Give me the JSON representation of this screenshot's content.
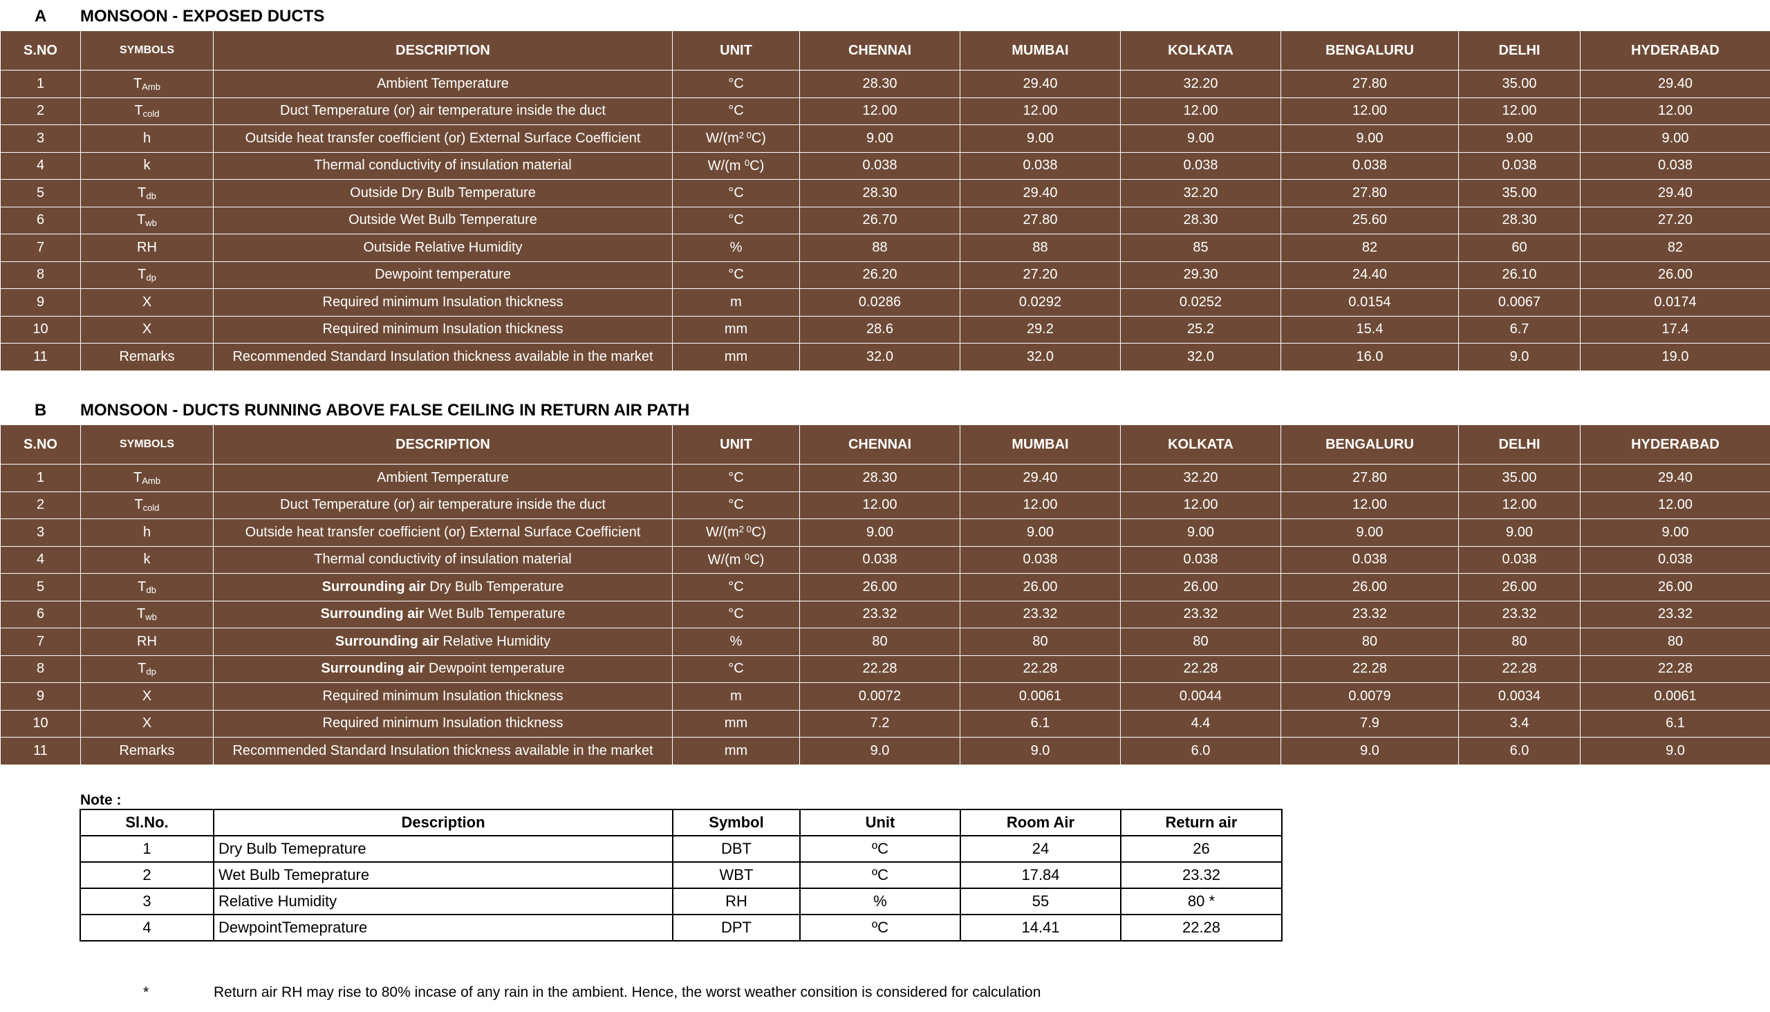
{
  "section_a": {
    "letter": "A",
    "title": "MONSOON - EXPOSED DUCTS",
    "headers": [
      "S.NO",
      "SYMBOLS",
      "DESCRIPTION",
      "UNIT",
      "CHENNAI",
      "MUMBAI",
      "KOLKATA",
      "BENGALURU",
      "DELHI",
      "HYDERABAD"
    ],
    "rows": [
      {
        "sno": "1",
        "sym": "T",
        "sub": "Amb",
        "desc_bold": "",
        "desc": "Ambient Temperature",
        "unit": "°C",
        "unit_sup": "",
        "unit_tail": "",
        "values": [
          "28.30",
          "29.40",
          "32.20",
          "27.80",
          "35.00",
          "29.40"
        ]
      },
      {
        "sno": "2",
        "sym": "T",
        "sub": "cold",
        "desc_bold": "",
        "desc": "Duct Temperature (or) air temperature inside the duct",
        "unit": "°C",
        "unit_sup": "",
        "unit_tail": "",
        "values": [
          "12.00",
          "12.00",
          "12.00",
          "12.00",
          "12.00",
          "12.00"
        ]
      },
      {
        "sno": "3",
        "sym": "h",
        "sub": "",
        "desc_bold": "",
        "desc": "Outside heat transfer coefficient (or) External Surface Coefficient",
        "unit": "W/(m",
        "unit_sup": "2 0",
        "unit_tail": "C)",
        "values": [
          "9.00",
          "9.00",
          "9.00",
          "9.00",
          "9.00",
          "9.00"
        ]
      },
      {
        "sno": "4",
        "sym": "k",
        "sub": "",
        "desc_bold": "",
        "desc": "Thermal conductivity of insulation material",
        "unit": "W/(m ",
        "unit_sup": "0",
        "unit_tail": "C)",
        "values": [
          "0.038",
          "0.038",
          "0.038",
          "0.038",
          "0.038",
          "0.038"
        ]
      },
      {
        "sno": "5",
        "sym": "T",
        "sub": "db",
        "desc_bold": "",
        "desc": "Outside Dry Bulb Temperature",
        "unit": "°C",
        "unit_sup": "",
        "unit_tail": "",
        "values": [
          "28.30",
          "29.40",
          "32.20",
          "27.80",
          "35.00",
          "29.40"
        ]
      },
      {
        "sno": "6",
        "sym": "T",
        "sub": "wb",
        "desc_bold": "",
        "desc": "Outside Wet Bulb Temperature",
        "unit": "°C",
        "unit_sup": "",
        "unit_tail": "",
        "values": [
          "26.70",
          "27.80",
          "28.30",
          "25.60",
          "28.30",
          "27.20"
        ]
      },
      {
        "sno": "7",
        "sym": "RH",
        "sub": "",
        "desc_bold": "",
        "desc": "Outside Relative Humidity",
        "unit": "%",
        "unit_sup": "",
        "unit_tail": "",
        "values": [
          "88",
          "88",
          "85",
          "82",
          "60",
          "82"
        ]
      },
      {
        "sno": "8",
        "sym": "T",
        "sub": "dp",
        "desc_bold": "",
        "desc": "Dewpoint temperature",
        "unit": "°C",
        "unit_sup": "",
        "unit_tail": "",
        "values": [
          "26.20",
          "27.20",
          "29.30",
          "24.40",
          "26.10",
          "26.00"
        ]
      },
      {
        "sno": "9",
        "sym": "X",
        "sub": "",
        "desc_bold": "",
        "desc": "Required minimum Insulation thickness",
        "unit": "m",
        "unit_sup": "",
        "unit_tail": "",
        "values": [
          "0.0286",
          "0.0292",
          "0.0252",
          "0.0154",
          "0.0067",
          "0.0174"
        ]
      },
      {
        "sno": "10",
        "sym": "X",
        "sub": "",
        "desc_bold": "",
        "desc": "Required minimum Insulation thickness",
        "unit": "mm",
        "unit_sup": "",
        "unit_tail": "",
        "values": [
          "28.6",
          "29.2",
          "25.2",
          "15.4",
          "6.7",
          "17.4"
        ]
      },
      {
        "sno": "11",
        "sym": "Remarks",
        "sub": "",
        "desc_bold": "",
        "desc": "Recommended Standard Insulation thickness available in the market",
        "unit": "mm",
        "unit_sup": "",
        "unit_tail": "",
        "values": [
          "32.0",
          "32.0",
          "32.0",
          "16.0",
          "9.0",
          "19.0"
        ]
      }
    ]
  },
  "section_b": {
    "letter": "B",
    "title": "MONSOON - DUCTS RUNNING ABOVE FALSE CEILING IN RETURN AIR PATH",
    "headers": [
      "S.NO",
      "SYMBOLS",
      "DESCRIPTION",
      "UNIT",
      "CHENNAI",
      "MUMBAI",
      "KOLKATA",
      "BENGALURU",
      "DELHI",
      "HYDERABAD"
    ],
    "rows": [
      {
        "sno": "1",
        "sym": "T",
        "sub": "Amb",
        "desc_bold": "",
        "desc": "Ambient Temperature",
        "unit": "°C",
        "unit_sup": "",
        "unit_tail": "",
        "values": [
          "28.30",
          "29.40",
          "32.20",
          "27.80",
          "35.00",
          "29.40"
        ]
      },
      {
        "sno": "2",
        "sym": "T",
        "sub": "cold",
        "desc_bold": "",
        "desc": "Duct Temperature (or) air temperature inside the duct",
        "unit": "°C",
        "unit_sup": "",
        "unit_tail": "",
        "values": [
          "12.00",
          "12.00",
          "12.00",
          "12.00",
          "12.00",
          "12.00"
        ]
      },
      {
        "sno": "3",
        "sym": "h",
        "sub": "",
        "desc_bold": "",
        "desc": "Outside heat transfer coefficient (or) External Surface Coefficient",
        "unit": "W/(m",
        "unit_sup": "2 0",
        "unit_tail": "C)",
        "values": [
          "9.00",
          "9.00",
          "9.00",
          "9.00",
          "9.00",
          "9.00"
        ]
      },
      {
        "sno": "4",
        "sym": "k",
        "sub": "",
        "desc_bold": "",
        "desc": "Thermal conductivity of insulation material",
        "unit": "W/(m ",
        "unit_sup": "0",
        "unit_tail": "C)",
        "values": [
          "0.038",
          "0.038",
          "0.038",
          "0.038",
          "0.038",
          "0.038"
        ]
      },
      {
        "sno": "5",
        "sym": "T",
        "sub": "db",
        "desc_bold": "Surrounding air",
        "desc": "Dry Bulb Temperature",
        "unit": "°C",
        "unit_sup": "",
        "unit_tail": "",
        "values": [
          "26.00",
          "26.00",
          "26.00",
          "26.00",
          "26.00",
          "26.00"
        ]
      },
      {
        "sno": "6",
        "sym": "T",
        "sub": "wb",
        "desc_bold": "Surrounding air",
        "desc": "Wet Bulb Temperature",
        "unit": "°C",
        "unit_sup": "",
        "unit_tail": "",
        "values": [
          "23.32",
          "23.32",
          "23.32",
          "23.32",
          "23.32",
          "23.32"
        ]
      },
      {
        "sno": "7",
        "sym": "RH",
        "sub": "",
        "desc_bold": "Surrounding air",
        "desc": "Relative Humidity",
        "unit": "%",
        "unit_sup": "",
        "unit_tail": "",
        "values": [
          "80",
          "80",
          "80",
          "80",
          "80",
          "80"
        ]
      },
      {
        "sno": "8",
        "sym": "T",
        "sub": "dp",
        "desc_bold": "Surrounding air",
        "desc": "Dewpoint temperature",
        "unit": "°C",
        "unit_sup": "",
        "unit_tail": "",
        "values": [
          "22.28",
          "22.28",
          "22.28",
          "22.28",
          "22.28",
          "22.28"
        ]
      },
      {
        "sno": "9",
        "sym": "X",
        "sub": "",
        "desc_bold": "",
        "desc": "Required minimum Insulation thickness",
        "unit": "m",
        "unit_sup": "",
        "unit_tail": "",
        "values": [
          "0.0072",
          "0.0061",
          "0.0044",
          "0.0079",
          "0.0034",
          "0.0061"
        ]
      },
      {
        "sno": "10",
        "sym": "X",
        "sub": "",
        "desc_bold": "",
        "desc": "Required minimum Insulation thickness",
        "unit": "mm",
        "unit_sup": "",
        "unit_tail": "",
        "values": [
          "7.2",
          "6.1",
          "4.4",
          "7.9",
          "3.4",
          "6.1"
        ]
      },
      {
        "sno": "11",
        "sym": "Remarks",
        "sub": "",
        "desc_bold": "",
        "desc": "Recommended Standard Insulation thickness available in the market",
        "unit": "mm",
        "unit_sup": "",
        "unit_tail": "",
        "values": [
          "9.0",
          "9.0",
          "6.0",
          "9.0",
          "6.0",
          "9.0"
        ]
      }
    ]
  },
  "note": {
    "label": "Note :",
    "headers": [
      "Sl.No.",
      "Description",
      "Symbol",
      "Unit",
      "Room Air",
      "Return air"
    ],
    "rows": [
      [
        "1",
        "Dry Bulb Temeprature",
        "DBT",
        "ºC",
        "24",
        "26"
      ],
      [
        "2",
        "Wet Bulb Temeprature",
        "WBT",
        "ºC",
        "17.84",
        "23.32"
      ],
      [
        "3",
        "Relative Humidity",
        "RH",
        "%",
        "55",
        "80 *"
      ],
      [
        "4",
        "DewpointTemeprature",
        "DPT",
        "ºC",
        "14.41",
        "22.28"
      ]
    ],
    "footnote_marker": "*",
    "footnote_text": "Return air RH may rise to 80% incase of any rain in the ambient. Hence, the worst weather consition is considered for calculation"
  },
  "colors": {
    "table_bg": "#6e4a36",
    "table_border": "#ffffff",
    "table_text": "#ffffff"
  }
}
